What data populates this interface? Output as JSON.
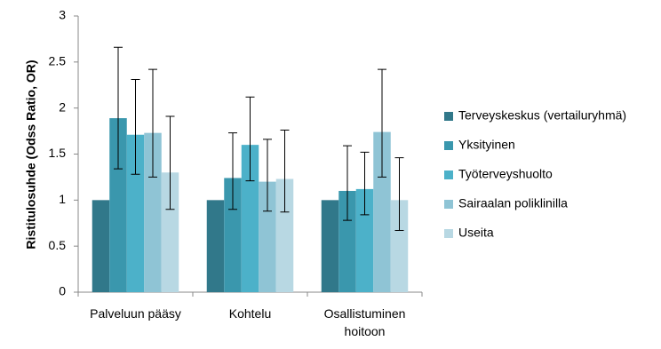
{
  "chart_data": {
    "type": "bar",
    "y_label": "Ristitulosuhde (Odss Ratio, OR)",
    "categories": [
      "Palveluun pääsy",
      "Kohtelu",
      "Osallistuminen hoitoon"
    ],
    "ylim": [
      0,
      3
    ],
    "yticks": [
      0,
      0.5,
      1,
      1.5,
      2,
      2.5,
      3
    ],
    "grid": true,
    "legend": "right",
    "series": [
      {
        "name": "Terveyskeskus (vertailuryhmä)",
        "color": "#31788a",
        "values": [
          1,
          1,
          1
        ]
      },
      {
        "name": "Yksityinen",
        "color": "#3a97ad",
        "values": [
          1.89,
          1.24,
          1.1
        ],
        "ci_low": [
          1.34,
          0.9,
          0.78
        ],
        "ci_high": [
          2.66,
          1.73,
          1.59
        ]
      },
      {
        "name": "Työterveyshuolto",
        "color": "#4cb1c9",
        "values": [
          1.71,
          1.6,
          1.12
        ],
        "ci_low": [
          1.28,
          1.21,
          0.84
        ],
        "ci_high": [
          2.31,
          2.12,
          1.52
        ]
      },
      {
        "name": "Sairaalan poliklinilla",
        "color": "#8fc4d5",
        "values": [
          1.73,
          1.2,
          1.74
        ],
        "ci_low": [
          1.25,
          0.88,
          1.25
        ],
        "ci_high": [
          2.42,
          1.66,
          2.42
        ]
      },
      {
        "name": "Useita",
        "color": "#b8d8e3",
        "values": [
          1.3,
          1.23,
          1.0
        ],
        "ci_low": [
          0.9,
          0.87,
          0.67
        ],
        "ci_high": [
          1.91,
          1.76,
          1.46
        ]
      }
    ]
  }
}
